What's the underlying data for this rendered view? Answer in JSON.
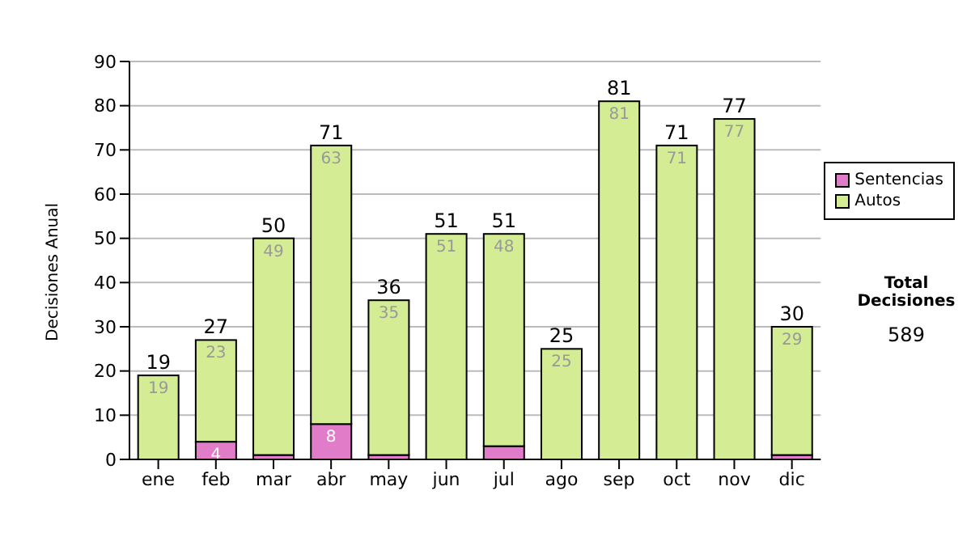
{
  "chart_data": {
    "type": "bar",
    "stacked": true,
    "ylabel": "Decisiones Anual",
    "categories": [
      "ene",
      "feb",
      "mar",
      "abr",
      "may",
      "jun",
      "jul",
      "ago",
      "sep",
      "oct",
      "nov",
      "dic"
    ],
    "series": [
      {
        "name": "Sentencias",
        "color": "#e07cc8",
        "values": [
          0,
          4,
          1,
          8,
          1,
          0,
          3,
          0,
          0,
          0,
          0,
          1
        ],
        "value_labels": [
          null,
          "4",
          null,
          "8",
          null,
          null,
          null,
          null,
          null,
          null,
          null,
          null
        ]
      },
      {
        "name": "Autos",
        "color": "#d4ec94",
        "values": [
          19,
          23,
          49,
          63,
          35,
          51,
          48,
          25,
          81,
          71,
          77,
          29
        ],
        "value_labels": [
          "19",
          "23",
          "49",
          "63",
          "35",
          "51",
          "48",
          "25",
          "81",
          "71",
          "77",
          "29"
        ]
      }
    ],
    "totals": [
      "19",
      "27",
      "50",
      "71",
      "36",
      "51",
      "51",
      "25",
      "81",
      "71",
      "77",
      "30"
    ],
    "ylim": [
      0,
      90
    ],
    "yticks": [
      0,
      10,
      20,
      30,
      40,
      50,
      60,
      70,
      80,
      90
    ],
    "grid": "y",
    "legend": "right",
    "annotations": [
      "Total Decisiones",
      "589"
    ]
  }
}
